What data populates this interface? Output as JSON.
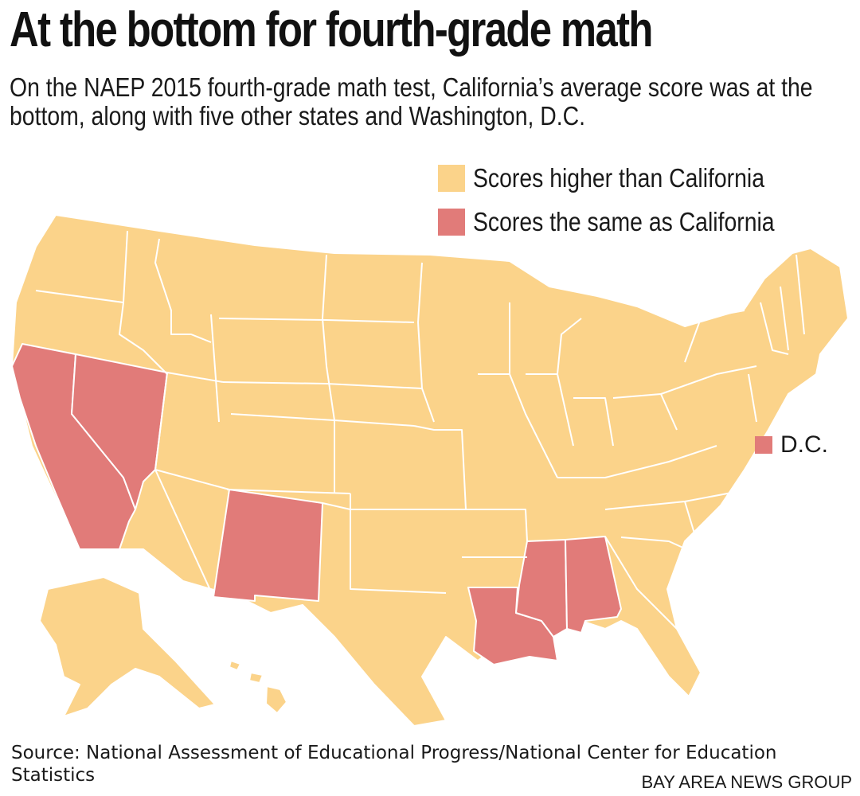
{
  "title": "At the bottom for fourth-grade math",
  "subtitle": "On the NAEP 2015 fourth-grade math test, California’s average score was at the bottom, along with five other states and Washington, D.C.",
  "legend": {
    "higher": {
      "label": "Scores higher than California",
      "color": "#fbd38a"
    },
    "same": {
      "label": "Scores the same as California",
      "color": "#e17b79"
    }
  },
  "dc_label": "D.C.",
  "map": {
    "states_same_as_california": [
      "California",
      "Nevada",
      "New Mexico",
      "Louisiana",
      "Mississippi",
      "Alabama",
      "District of Columbia"
    ],
    "states_higher_than_california": "All other states"
  },
  "source": "Source: National Assessment of Educational Progress/National Center for Education Statistics",
  "credit": "BAY AREA NEWS GROUP"
}
